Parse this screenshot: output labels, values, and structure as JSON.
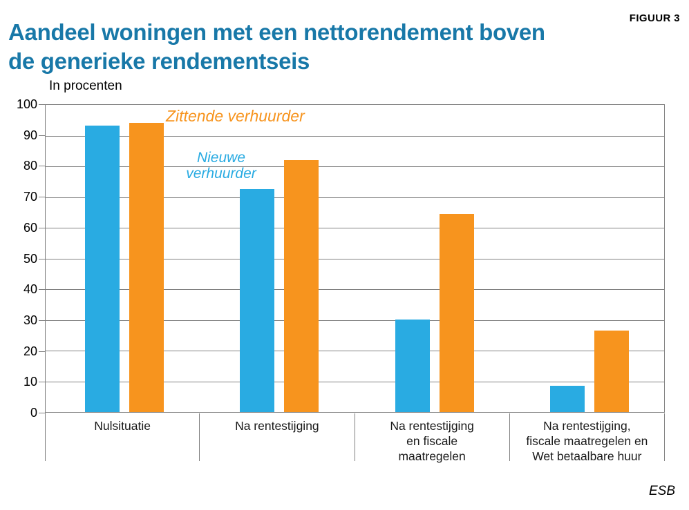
{
  "header": {
    "title": "Aandeel woningen met een nettorendement boven de generieke rendementseis",
    "figure_label": "FIGUUR 3"
  },
  "chart_data": {
    "type": "bar",
    "title": "Aandeel woningen met een nettorendement boven de generieke rendementseis",
    "xlabel": "",
    "ylabel": "In procenten",
    "ylim": [
      0,
      100
    ],
    "yticks": [
      0,
      10,
      20,
      30,
      40,
      50,
      60,
      70,
      80,
      90,
      100
    ],
    "grid": true,
    "legend_position": "inline-annotations",
    "categories": [
      "Nulsituatie",
      "Na rentestijging",
      "Na rentestijging en fiscale maatregelen",
      "Na rentestijging, fiscale maatregelen en Wet betaalbare huur"
    ],
    "category_lines": [
      [
        "Nulsituatie"
      ],
      [
        "Na rentestijging"
      ],
      [
        "Na rentestijging",
        "en fiscale",
        "maatregelen"
      ],
      [
        "Na rentestijging,",
        "fiscale maatregelen en",
        "Wet betaalbare huur"
      ]
    ],
    "series": [
      {
        "name": "Nieuwe verhuurder",
        "color": "#29ABE2",
        "values": [
          93.3,
          72.5,
          30.2,
          8.6
        ]
      },
      {
        "name": "Zittende verhuurder",
        "color": "#F7941E",
        "values": [
          94.2,
          82.1,
          64.5,
          26.5
        ]
      }
    ]
  },
  "footer": {
    "brand": "ESB"
  },
  "colors": {
    "title": "#1878A8",
    "nieuwe_blue": "#29ABE2",
    "zittende_orange": "#F7941E",
    "grid": "#808080",
    "text": "#1A1A1A"
  }
}
